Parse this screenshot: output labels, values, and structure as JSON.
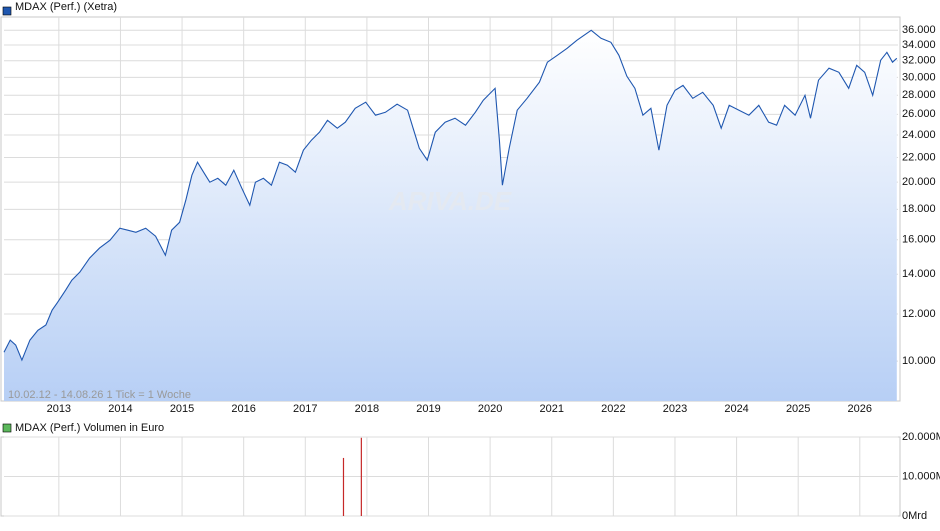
{
  "chart_data": [
    {
      "type": "line",
      "legend_position": "top-left",
      "log_scale": true,
      "grid": true,
      "watermark": "ARIVA.DE",
      "annotation": "10.02.12 - 14.08.26   1 Tick = 1 Woche",
      "xlim": [
        2012.11,
        2026.62
      ],
      "xticks": [
        2013,
        2014,
        2015,
        2016,
        2017,
        2018,
        2019,
        2020,
        2021,
        2022,
        2023,
        2024,
        2025,
        2026
      ],
      "ylim": [
        8570,
        37900
      ],
      "yticks": [
        {
          "value": 10000,
          "label": "10.000"
        },
        {
          "value": 12000,
          "label": "12.000"
        },
        {
          "value": 14000,
          "label": "14.000"
        },
        {
          "value": 16000,
          "label": "16.000"
        },
        {
          "value": 18000,
          "label": "18.000"
        },
        {
          "value": 20000,
          "label": "20.000"
        },
        {
          "value": 22000,
          "label": "22.000"
        },
        {
          "value": 24000,
          "label": "24.000"
        },
        {
          "value": 26000,
          "label": "26.000"
        },
        {
          "value": 28000,
          "label": "28.000"
        },
        {
          "value": 30000,
          "label": "30.000"
        },
        {
          "value": 32000,
          "label": "32.000"
        },
        {
          "value": 34000,
          "label": "34.000"
        },
        {
          "value": 36000,
          "label": "36.000"
        }
      ],
      "x": [
        2012.11,
        2012.21,
        2012.3,
        2012.4,
        2012.53,
        2012.66,
        2012.79,
        2012.89,
        2012.98,
        2013.11,
        2013.21,
        2013.34,
        2013.5,
        2013.66,
        2013.83,
        2013.99,
        2014.12,
        2014.25,
        2014.41,
        2014.57,
        2014.73,
        2014.83,
        2014.96,
        2015.06,
        2015.16,
        2015.25,
        2015.35,
        2015.45,
        2015.58,
        2015.71,
        2015.84,
        2015.97,
        2016.1,
        2016.19,
        2016.32,
        2016.45,
        2016.58,
        2016.71,
        2016.84,
        2016.97,
        2017.1,
        2017.23,
        2017.36,
        2017.52,
        2017.65,
        2017.81,
        2017.98,
        2018.14,
        2018.3,
        2018.49,
        2018.66,
        2018.75,
        2018.85,
        2018.98,
        2019.11,
        2019.27,
        2019.43,
        2019.6,
        2019.76,
        2019.89,
        2020.08,
        2020.15,
        2020.2,
        2020.31,
        2020.44,
        2020.6,
        2020.8,
        2020.93,
        2021.09,
        2021.25,
        2021.41,
        2021.64,
        2021.8,
        2021.96,
        2022.09,
        2022.22,
        2022.35,
        2022.48,
        2022.61,
        2022.74,
        2022.87,
        2023.0,
        2023.13,
        2023.29,
        2023.45,
        2023.62,
        2023.75,
        2023.88,
        2024.04,
        2024.2,
        2024.36,
        2024.52,
        2024.65,
        2024.78,
        2024.95,
        2025.11,
        2025.2,
        2025.33,
        2025.5,
        2025.66,
        2025.82,
        2025.95,
        2026.08,
        2026.21,
        2026.34,
        2026.44,
        2026.53,
        2026.6
      ],
      "series": [
        {
          "name": "MDAX (Perf.) (Xetra)",
          "color": "#1f57b0",
          "values": [
            10350,
            10850,
            10640,
            10040,
            10850,
            11270,
            11500,
            12180,
            12560,
            13160,
            13680,
            14110,
            14900,
            15490,
            15970,
            16730,
            16600,
            16470,
            16730,
            16220,
            15070,
            16600,
            17120,
            18650,
            20540,
            21600,
            20780,
            19990,
            20300,
            19760,
            20940,
            19530,
            18290,
            19990,
            20300,
            19760,
            21600,
            21350,
            20780,
            22630,
            23520,
            24260,
            25410,
            24640,
            25220,
            26620,
            27250,
            25910,
            26210,
            27040,
            26420,
            24640,
            22800,
            21770,
            24260,
            25220,
            25610,
            24930,
            26210,
            27460,
            28760,
            23520,
            19760,
            22800,
            26420,
            27670,
            29440,
            31810,
            32680,
            33580,
            34640,
            36000,
            34900,
            34370,
            32680,
            30130,
            28760,
            25910,
            26620,
            22630,
            26930,
            28520,
            29080,
            27670,
            28320,
            26930,
            24640,
            26930,
            26420,
            25910,
            26930,
            25220,
            24930,
            26930,
            25910,
            27990,
            25610,
            29670,
            31080,
            30600,
            28760,
            31440,
            30600,
            27990,
            32060,
            33060,
            31810,
            32300
          ]
        }
      ]
    },
    {
      "type": "bar",
      "legend_position": "top-left",
      "grid": true,
      "xlim": [
        2012.11,
        2026.62
      ],
      "ylim": [
        0,
        20000
      ],
      "yticks": [
        {
          "value": 0,
          "label": "0Mrd"
        },
        {
          "value": 10000,
          "label": "10.000M"
        },
        {
          "value": 20000,
          "label": "20.000M"
        }
      ],
      "x": [
        2017.62,
        2017.91
      ],
      "series": [
        {
          "name": "MDAX (Perf.) Volumen in Euro",
          "color": "#c62828",
          "legend_color": "#5cb85c",
          "values": [
            14700,
            19800
          ]
        }
      ]
    }
  ]
}
